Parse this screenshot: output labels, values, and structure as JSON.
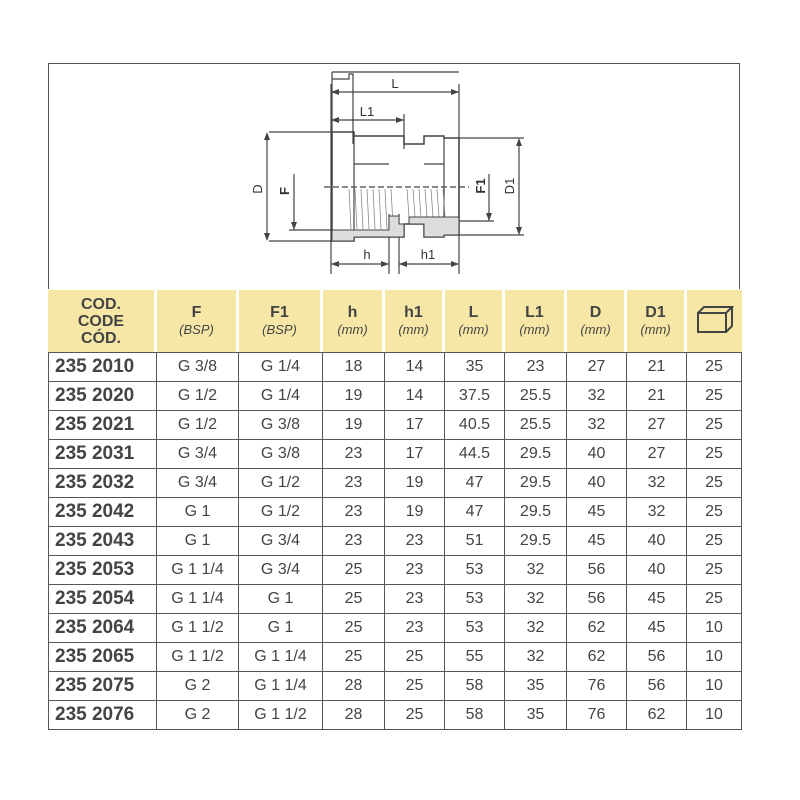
{
  "diagram": {
    "labels": {
      "L": "L",
      "L1": "L1",
      "D": "D",
      "F": "F",
      "F1": "F1",
      "D1": "D1",
      "h": "h",
      "h1": "h1"
    }
  },
  "table": {
    "headers": [
      {
        "name": "COD.\nCODE\nCÓD.",
        "lines": [
          "COD.",
          "CODE",
          "CÓD."
        ]
      },
      {
        "name": "F",
        "unit": "(BSP)"
      },
      {
        "name": "F1",
        "unit": "(BSP)"
      },
      {
        "name": "h",
        "unit": "(mm)"
      },
      {
        "name": "h1",
        "unit": "(mm)"
      },
      {
        "name": "L",
        "unit": "(mm)"
      },
      {
        "name": "L1",
        "unit": "(mm)"
      },
      {
        "name": "D",
        "unit": "(mm)"
      },
      {
        "name": "D1",
        "unit": "(mm)"
      },
      {
        "icon": "box-icon"
      }
    ],
    "rows": [
      [
        "235 2010",
        "G 3/8",
        "G 1/4",
        "18",
        "14",
        "35",
        "23",
        "27",
        "21",
        "25"
      ],
      [
        "235 2020",
        "G 1/2",
        "G 1/4",
        "19",
        "14",
        "37.5",
        "25.5",
        "32",
        "21",
        "25"
      ],
      [
        "235 2021",
        "G 1/2",
        "G 3/8",
        "19",
        "17",
        "40.5",
        "25.5",
        "32",
        "27",
        "25"
      ],
      [
        "235 2031",
        "G 3/4",
        "G 3/8",
        "23",
        "17",
        "44.5",
        "29.5",
        "40",
        "27",
        "25"
      ],
      [
        "235 2032",
        "G 3/4",
        "G 1/2",
        "23",
        "19",
        "47",
        "29.5",
        "40",
        "32",
        "25"
      ],
      [
        "235 2042",
        "G 1",
        "G 1/2",
        "23",
        "19",
        "47",
        "29.5",
        "45",
        "32",
        "25"
      ],
      [
        "235 2043",
        "G 1",
        "G 3/4",
        "23",
        "23",
        "51",
        "29.5",
        "45",
        "40",
        "25"
      ],
      [
        "235 2053",
        "G 1 1/4",
        "G 3/4",
        "25",
        "23",
        "53",
        "32",
        "56",
        "40",
        "25"
      ],
      [
        "235 2054",
        "G 1 1/4",
        "G 1",
        "25",
        "23",
        "53",
        "32",
        "56",
        "45",
        "25"
      ],
      [
        "235 2064",
        "G 1 1/2",
        "G 1",
        "25",
        "23",
        "53",
        "32",
        "62",
        "45",
        "10"
      ],
      [
        "235 2065",
        "G 1 1/2",
        "G 1 1/4",
        "25",
        "25",
        "55",
        "32",
        "62",
        "56",
        "10"
      ],
      [
        "235 2075",
        "G 2",
        "G 1 1/4",
        "28",
        "25",
        "58",
        "35",
        "76",
        "56",
        "10"
      ],
      [
        "235 2076",
        "G 2",
        "G 1 1/2",
        "28",
        "25",
        "58",
        "35",
        "76",
        "62",
        "10"
      ]
    ]
  }
}
